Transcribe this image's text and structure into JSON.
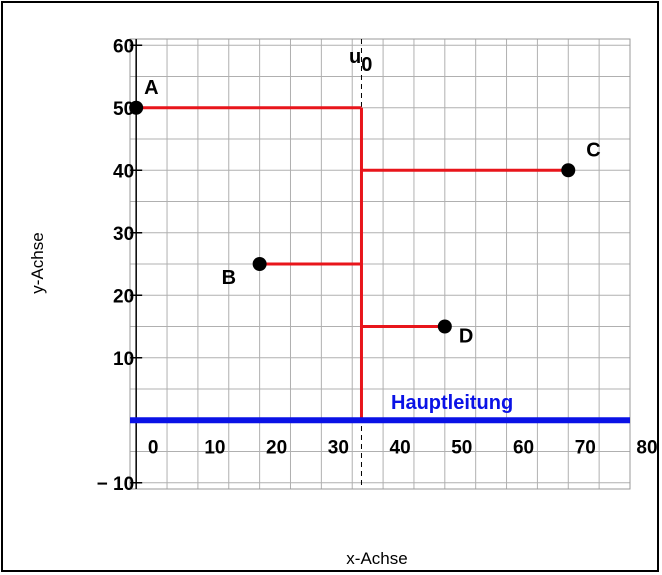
{
  "chart_data": {
    "type": "scatter",
    "xlabel": "x-Achse",
    "ylabel": "y-Achse",
    "xlim": [
      -1,
      80
    ],
    "ylim": [
      -11,
      61
    ],
    "x_ticks": [
      0,
      10,
      20,
      30,
      40,
      50,
      60,
      70,
      80
    ],
    "y_ticks": [
      -10,
      10,
      20,
      30,
      40,
      50,
      60
    ],
    "x_tick_labels": [
      "0",
      "10",
      "20",
      "30",
      "40",
      "50",
      "60",
      "70",
      "80"
    ],
    "y_tick_labels": [
      "− 10",
      "10",
      "20",
      "30",
      "40",
      "50",
      "60"
    ],
    "grid": true,
    "points": [
      {
        "label": "A",
        "x": 0,
        "y": 50
      },
      {
        "label": "B",
        "x": 20,
        "y": 25
      },
      {
        "label": "C",
        "x": 70,
        "y": 40
      },
      {
        "label": "D",
        "x": 50,
        "y": 15
      }
    ],
    "u0": {
      "label": "u",
      "subscript": "0",
      "x": 36.5
    },
    "main_line": {
      "label": "Hauptleitung",
      "y": 0,
      "x_range": [
        -1,
        80
      ]
    },
    "colors": {
      "branch": "#e8151b",
      "main": "#0a12e6",
      "point": "#000000",
      "grid": "#b0b0b0"
    }
  }
}
